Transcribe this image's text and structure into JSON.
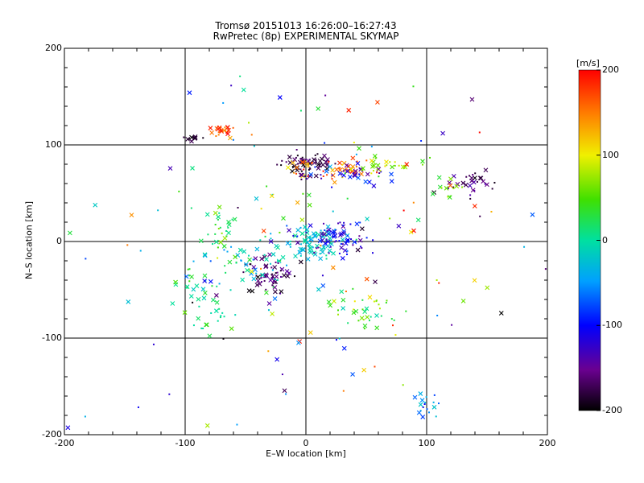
{
  "chart_data": {
    "type": "scatter",
    "title": "Tromsø 20151013 16:26:00–16:27:43",
    "subtitle": "RwPretec (8p) EXPERIMENTAL SKYMAP",
    "xlabel": "E–W location [km]",
    "ylabel": "N–S location [km]",
    "xlim": [
      -200,
      200
    ],
    "ylim": [
      -200,
      200
    ],
    "x_ticks": [
      "-200",
      "-100",
      "0",
      "100",
      "200"
    ],
    "y_ticks": [
      "200",
      "100",
      "0",
      "-100",
      "-200"
    ],
    "grid": true,
    "colorbar": {
      "unit": "[m/s]",
      "range": [
        -200,
        200
      ],
      "ticks": [
        "200",
        "100",
        "0",
        "-100",
        "-200"
      ]
    },
    "markers": [
      "x",
      "dot"
    ],
    "clusters": [
      {
        "x": 0,
        "y": 80,
        "sx": 12,
        "sy": 6,
        "n": 60,
        "v": [
          -200,
          -150
        ]
      },
      {
        "x": 20,
        "y": 75,
        "sx": 20,
        "sy": 6,
        "n": 45,
        "v": [
          100,
          200
        ]
      },
      {
        "x": 40,
        "y": 70,
        "sx": 18,
        "sy": 6,
        "n": 35,
        "v": [
          -150,
          -60
        ]
      },
      {
        "x": 70,
        "y": 78,
        "sx": 16,
        "sy": 5,
        "n": 30,
        "v": [
          40,
          110
        ]
      },
      {
        "x": 140,
        "y": 60,
        "sx": 10,
        "sy": 6,
        "n": 30,
        "v": [
          -200,
          -130
        ]
      },
      {
        "x": 115,
        "y": 55,
        "sx": 8,
        "sy": 5,
        "n": 12,
        "v": [
          30,
          90
        ]
      },
      {
        "x": -70,
        "y": 115,
        "sx": 5,
        "sy": 4,
        "n": 25,
        "v": [
          120,
          200
        ]
      },
      {
        "x": -95,
        "y": 108,
        "sx": 3,
        "sy": 2,
        "n": 10,
        "v": [
          -200,
          -170
        ]
      },
      {
        "x": 5,
        "y": 0,
        "sx": 12,
        "sy": 8,
        "n": 80,
        "v": [
          -50,
          10
        ]
      },
      {
        "x": 22,
        "y": 5,
        "sx": 14,
        "sy": 10,
        "n": 70,
        "v": [
          -150,
          -80
        ]
      },
      {
        "x": -30,
        "y": -35,
        "sx": 12,
        "sy": 10,
        "n": 60,
        "v": [
          -200,
          -140
        ]
      },
      {
        "x": -45,
        "y": -20,
        "sx": 20,
        "sy": 14,
        "n": 50,
        "v": [
          -60,
          40
        ]
      },
      {
        "x": -70,
        "y": 12,
        "sx": 6,
        "sy": 10,
        "n": 25,
        "v": [
          0,
          80
        ]
      },
      {
        "x": 50,
        "y": -75,
        "sx": 12,
        "sy": 10,
        "n": 35,
        "v": [
          -20,
          110
        ]
      },
      {
        "x": -95,
        "y": -45,
        "sx": 10,
        "sy": 20,
        "n": 25,
        "v": [
          -20,
          60
        ]
      },
      {
        "x": 100,
        "y": -170,
        "sx": 6,
        "sy": 8,
        "n": 18,
        "v": [
          -120,
          -20
        ]
      },
      {
        "x": -75,
        "y": -80,
        "sx": 8,
        "sy": 8,
        "n": 15,
        "v": [
          -10,
          60
        ]
      },
      {
        "x": 0,
        "y": 0,
        "sx": 90,
        "sy": 90,
        "n": 160,
        "v": [
          -200,
          200
        ]
      }
    ]
  }
}
